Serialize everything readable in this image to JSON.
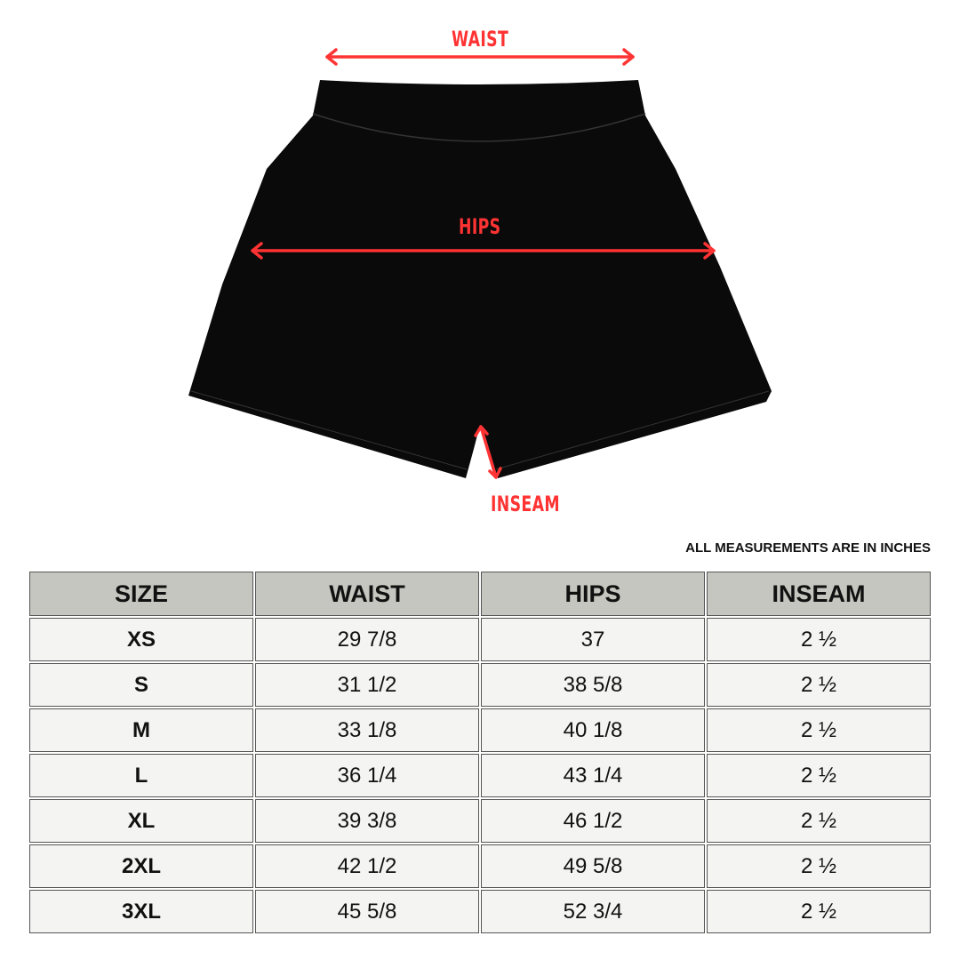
{
  "diagram": {
    "labels": {
      "waist": "WAIST",
      "hips": "HIPS",
      "inseam": "INSEAM"
    },
    "arrow_color": "#ff3333",
    "garment_color": "#0a0a0a"
  },
  "note": "ALL MEASUREMENTS ARE IN INCHES",
  "table": {
    "headers": [
      "SIZE",
      "WAIST",
      "HIPS",
      "INSEAM"
    ],
    "rows": [
      [
        "XS",
        "29 7/8",
        "37",
        "2 ½"
      ],
      [
        "S",
        "31 1/2",
        "38 5/8",
        "2 ½"
      ],
      [
        "M",
        "33 1/8",
        "40 1/8",
        "2 ½"
      ],
      [
        "L",
        "36 1/4",
        "43 1/4",
        "2 ½"
      ],
      [
        "XL",
        "39 3/8",
        "46 1/2",
        "2 ½"
      ],
      [
        "2XL",
        "42 1/2",
        "49 5/8",
        "2 ½"
      ],
      [
        "3XL",
        "45 5/8",
        "52 3/4",
        "2 ½"
      ]
    ]
  }
}
